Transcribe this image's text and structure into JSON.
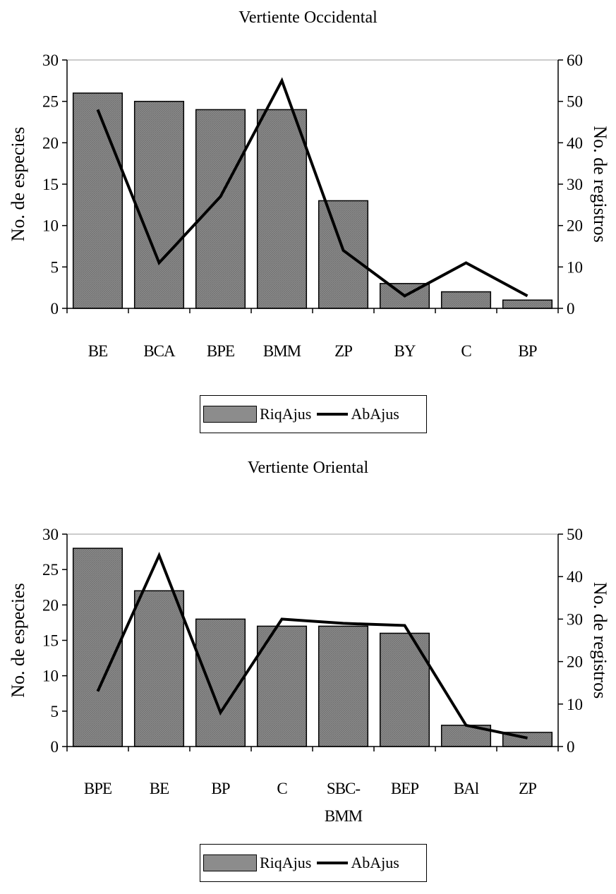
{
  "chart_data": [
    {
      "type": "bar",
      "title": "Vertiente Occidental",
      "categories": [
        "BE",
        "BCA",
        "BPE",
        "BMM",
        "ZP",
        "BY",
        "C",
        "BP"
      ],
      "ylabel": "No. de especies",
      "y2label": "No. de registros",
      "ylim": [
        0,
        30
      ],
      "y2lim": [
        0,
        60
      ],
      "yticks": [
        "0",
        "5",
        "10",
        "15",
        "20",
        "25",
        "30"
      ],
      "y2ticks": [
        "0",
        "10",
        "20",
        "30",
        "40",
        "50",
        "60"
      ],
      "series": [
        {
          "name": "RiqAjus",
          "type": "bar",
          "axis": "left",
          "values": [
            26,
            25,
            24,
            24,
            13,
            3,
            2,
            1
          ]
        },
        {
          "name": "AbAjus",
          "type": "line",
          "axis": "right",
          "values": [
            48,
            11,
            27,
            55,
            14,
            3,
            11,
            3
          ]
        }
      ],
      "legend": {
        "position": "bottom",
        "bar_label": "RiqAjus",
        "line_label": "AbAjus"
      },
      "grid": false,
      "colors": {
        "bar": "#8c8c8c",
        "line": "#000000"
      }
    },
    {
      "type": "bar",
      "title": "Vertiente Oriental",
      "categories": [
        [
          "BPE"
        ],
        [
          "BE"
        ],
        [
          "BP"
        ],
        [
          "C"
        ],
        [
          "SBC-",
          "BMM"
        ],
        [
          "BEP"
        ],
        [
          "BAl"
        ],
        [
          "ZP"
        ]
      ],
      "ylabel": "No. de especies",
      "y2label": "No. de registros",
      "ylim": [
        0,
        30
      ],
      "y2lim": [
        0,
        50
      ],
      "yticks": [
        "0",
        "5",
        "10",
        "15",
        "20",
        "25",
        "30"
      ],
      "y2ticks": [
        "0",
        "10",
        "20",
        "30",
        "40",
        "50"
      ],
      "series": [
        {
          "name": "RiqAjus",
          "type": "bar",
          "axis": "left",
          "values": [
            28,
            22,
            18,
            17,
            17,
            16,
            3,
            2
          ]
        },
        {
          "name": "AbAjus",
          "type": "line",
          "axis": "right",
          "values": [
            13,
            45,
            8,
            30,
            29,
            28.5,
            5,
            2
          ]
        }
      ],
      "legend": {
        "position": "bottom",
        "bar_label": "RiqAjus",
        "line_label": "AbAjus"
      },
      "grid": false,
      "colors": {
        "bar": "#8c8c8c",
        "line": "#000000"
      }
    }
  ]
}
